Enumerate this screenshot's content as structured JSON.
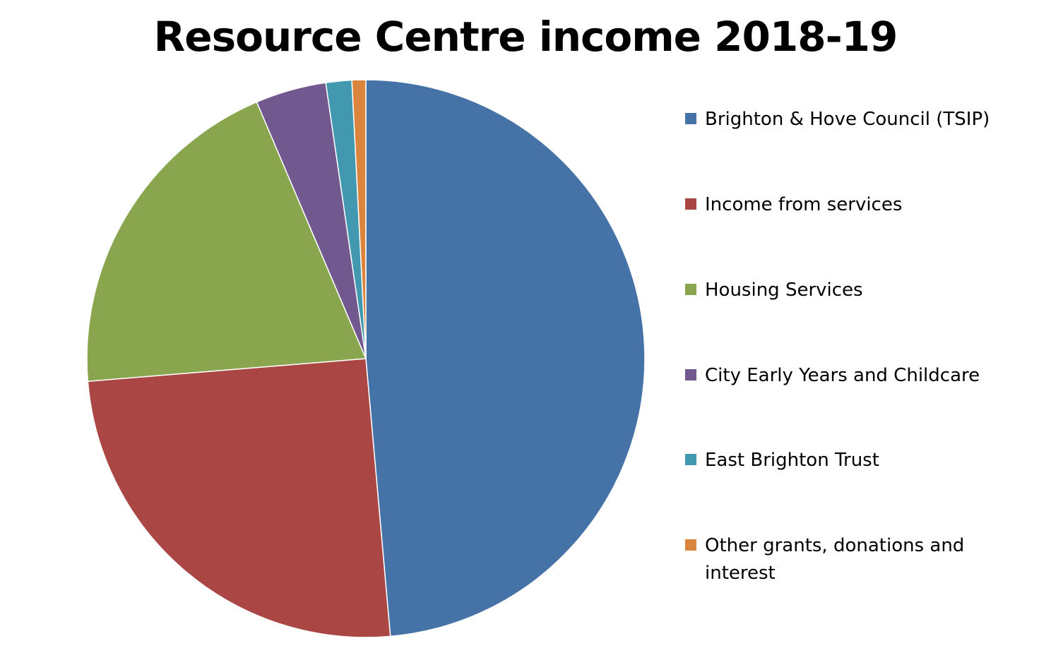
{
  "chart_data": {
    "type": "pie",
    "title": "Resource Centre income 2018-19",
    "categories": [
      "Brighton & Hove Council (TSIP)",
      "Income from services",
      "Housing Services",
      "City Early Years and Childcare",
      "East Brighton Trust",
      "Other grants, donations and interest"
    ],
    "values": [
      48.6,
      25.1,
      19.9,
      4.1,
      1.5,
      0.8
    ],
    "colors": [
      "#4572A7",
      "#AA4643",
      "#89A54E",
      "#71588F",
      "#4198AF",
      "#DB843D"
    ],
    "legend_position": "right",
    "start_angle_deg": 0,
    "direction": "clockwise"
  }
}
